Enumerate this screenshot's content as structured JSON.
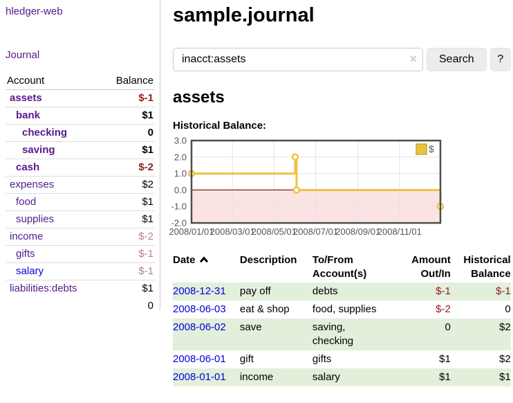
{
  "colors": {
    "purple": "#551A8B",
    "blue": "#0000E0",
    "neg": "#8f1d1d",
    "neg-muted": "#bf7d7d",
    "row-green": "#e2efda",
    "gold": "#EDC240",
    "axis": "#545454"
  },
  "app": {
    "title": "hledger-web",
    "nav_journal": "Journal"
  },
  "sidebar": {
    "header": {
      "account": "Account",
      "balance": "Balance"
    },
    "accounts": [
      {
        "name": "assets",
        "level": 1,
        "balance": "$-1",
        "bold": true,
        "negative": "strong"
      },
      {
        "name": "bank",
        "level": 2,
        "balance": "$1",
        "bold": true
      },
      {
        "name": "checking",
        "level": 3,
        "balance": "0",
        "bold": true
      },
      {
        "name": "saving",
        "level": 3,
        "balance": "$1",
        "bold": true
      },
      {
        "name": "cash",
        "level": 2,
        "balance": "$-2",
        "bold": true,
        "negative": "strong"
      },
      {
        "name": "expenses",
        "level": 1,
        "balance": "$2"
      },
      {
        "name": "food",
        "level": 2,
        "balance": "$1"
      },
      {
        "name": "supplies",
        "level": 2,
        "balance": "$1"
      },
      {
        "name": "income",
        "level": 1,
        "balance": "$-2",
        "negative": "muted"
      },
      {
        "name": "gifts",
        "level": 2,
        "balance": "$-1",
        "negative": "muted"
      },
      {
        "name": "salary",
        "level": 2,
        "balance": "$-1",
        "negative": "muted",
        "link_color": "blue"
      },
      {
        "name": "liabilities:debts",
        "level": 1,
        "balance": "$1"
      }
    ],
    "total": "0"
  },
  "main": {
    "title": "sample.journal",
    "search": {
      "value": "inacct:assets",
      "clear_icon": "×",
      "button": "Search",
      "help_button": "?"
    },
    "account_heading": "assets",
    "chart_label": "Historical Balance:"
  },
  "chart_data": {
    "type": "line",
    "step": true,
    "title": "Historical Balance",
    "legend": [
      {
        "label": "$",
        "color": "#EDC240"
      }
    ],
    "legend_position": "top-right",
    "grid": true,
    "x_domain_days": [
      0,
      365
    ],
    "ylim": [
      -2,
      3
    ],
    "y_ticks": [
      "3.0",
      "2.0",
      "1.0",
      "0.0",
      "-1.0",
      "-2.0"
    ],
    "y_tick_values": [
      3,
      2,
      1,
      0,
      -1,
      -2
    ],
    "x_ticks": [
      {
        "label": "2008/01/01",
        "day": 0
      },
      {
        "label": "2008/03/01",
        "day": 60
      },
      {
        "label": "2008/05/01",
        "day": 121
      },
      {
        "label": "2008/07/01",
        "day": 182
      },
      {
        "label": "2008/09/01",
        "day": 244
      },
      {
        "label": "2008/11/01",
        "day": 305
      }
    ],
    "points": [
      {
        "date": "2008-01-01",
        "day": 0,
        "value": 1
      },
      {
        "date": "2008-06-01",
        "day": 152,
        "value": 2
      },
      {
        "date": "2008-06-03",
        "day": 154,
        "value": 0
      },
      {
        "date": "2008-12-31",
        "day": 365,
        "value": -1
      }
    ],
    "line_color": "#EDC240",
    "marker_fill": "#ffffff",
    "negative_region_fill": "#fce3e3",
    "zero_line_color": "#8b1a1a",
    "border_color": "#4d4d4d",
    "gridline_color": "#e3e3e3",
    "tick_label_color": "#545454"
  },
  "table": {
    "headers": {
      "date": "Date",
      "sort_icon": "chevron-up",
      "description": "Description",
      "tofrom": "To/From Account(s)",
      "amount": "Amount Out/In",
      "historical": "Historical Balance"
    },
    "rows": [
      {
        "date": "2008-12-31",
        "description": "pay off",
        "accounts": "debts",
        "amount": "$-1",
        "amount_neg": true,
        "historical": "$-1",
        "historical_neg": true
      },
      {
        "date": "2008-06-03",
        "description": "eat & shop",
        "accounts": "food, supplies",
        "amount": "$-2",
        "amount_neg": true,
        "historical": "0"
      },
      {
        "date": "2008-06-02",
        "description": "save",
        "accounts": "saving, checking",
        "amount": "0",
        "historical": "$2"
      },
      {
        "date": "2008-06-01",
        "description": "gift",
        "accounts": "gifts",
        "amount": "$1",
        "historical": "$2"
      },
      {
        "date": "2008-01-01",
        "description": "income",
        "accounts": "salary",
        "amount": "$1",
        "historical": "$1"
      }
    ]
  }
}
